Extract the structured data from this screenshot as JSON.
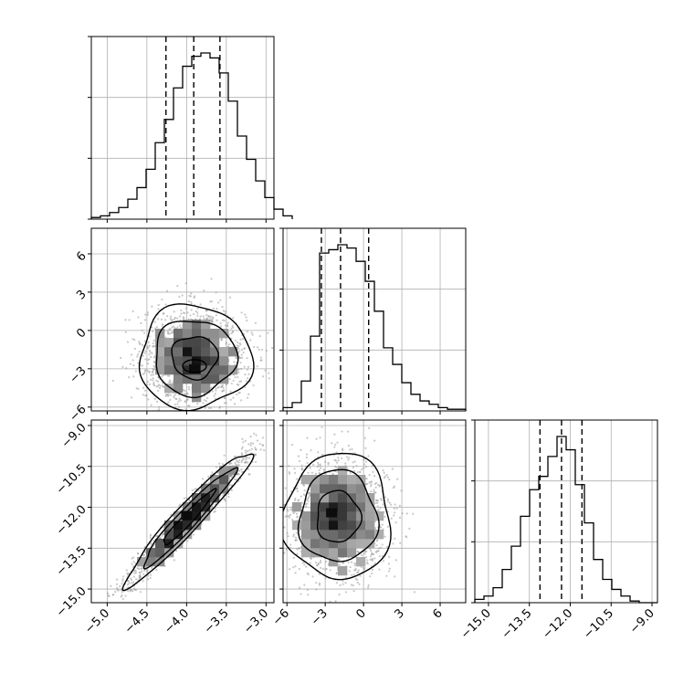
{
  "chart_data": {
    "type": "corner",
    "grid": true,
    "colors": {
      "line": "#000000",
      "grid": "#b0b0b0",
      "scatter": "#9a9a9a",
      "background": "#ffffff"
    },
    "parameters": [
      {
        "range": [
          -5.2,
          -2.9
        ],
        "ticks": [
          -5.0,
          -4.5,
          -4.0,
          -3.5,
          -3.0
        ],
        "tick_labels": [
          "−5.0",
          "−4.5",
          "−4.0",
          "−3.5",
          "−3.0"
        ],
        "quantiles": [
          -4.26,
          -3.91,
          -3.58
        ],
        "histogram": {
          "bin_start": -5.2,
          "bin_width": 0.115,
          "counts": [
            0.01,
            0.02,
            0.04,
            0.07,
            0.12,
            0.19,
            0.3,
            0.46,
            0.6,
            0.79,
            0.92,
            0.98,
            1.0,
            0.97,
            0.88,
            0.71,
            0.5,
            0.36,
            0.23,
            0.13,
            0.06,
            0.02
          ]
        }
      },
      {
        "range": [
          -6.3,
          8.0
        ],
        "ticks": [
          -6,
          -3,
          0,
          3,
          6
        ],
        "tick_labels": [
          "−6",
          "−3",
          "0",
          "3",
          "6"
        ],
        "quantiles": [
          -3.3,
          -1.8,
          0.4
        ],
        "histogram": {
          "bin_start": -6.3,
          "bin_width": 0.715,
          "counts": [
            0.02,
            0.05,
            0.18,
            0.45,
            0.95,
            0.97,
            1.0,
            0.98,
            0.9,
            0.78,
            0.6,
            0.38,
            0.28,
            0.17,
            0.1,
            0.06,
            0.04,
            0.02,
            0.01,
            0.01
          ]
        }
      },
      {
        "range": [
          -15.5,
          -8.8
        ],
        "ticks": [
          -15.0,
          -13.5,
          -12.0,
          -10.5,
          -9.0
        ],
        "tick_labels": [
          "−15.0",
          "−13.5",
          "−12.0",
          "−10.5",
          "−9.0"
        ],
        "quantiles": [
          -13.11,
          -12.32,
          -11.57
        ],
        "histogram": {
          "bin_start": -15.5,
          "bin_width": 0.335,
          "counts": [
            0.02,
            0.04,
            0.09,
            0.2,
            0.34,
            0.52,
            0.68,
            0.76,
            0.88,
            1.0,
            0.92,
            0.71,
            0.48,
            0.26,
            0.14,
            0.08,
            0.04,
            0.01,
            0.0,
            0.0
          ]
        }
      }
    ],
    "pairs": [
      {
        "x": 0,
        "y": 1,
        "mean": [
          -3.9,
          -2.1
        ],
        "sd": [
          0.32,
          1.85
        ],
        "corr": 0.0,
        "peak": [
          -3.9,
          -3.0
        ]
      },
      {
        "x": 0,
        "y": 2,
        "mean": [
          -3.98,
          -12.4
        ],
        "sd": [
          0.36,
          1.12
        ],
        "corr": 0.96,
        "peak": [
          -4.0,
          -12.3
        ]
      },
      {
        "x": 1,
        "y": 2,
        "mean": [
          -2.0,
          -12.35
        ],
        "sd": [
          1.9,
          1.05
        ],
        "corr": 0.0,
        "peak": [
          -2.5,
          -12.2
        ]
      }
    ]
  }
}
